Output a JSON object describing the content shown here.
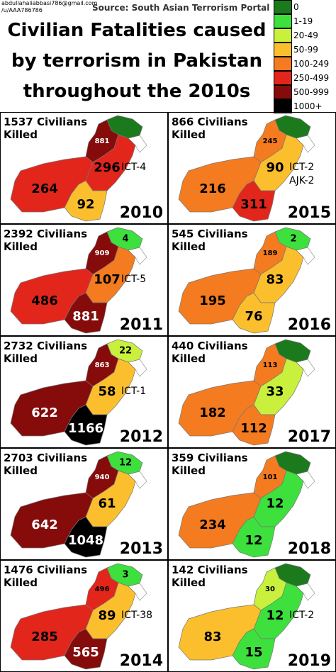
{
  "header": {
    "credit": [
      "abdullahaliabbasi786@gmail.com",
      "/u/AAA786786"
    ],
    "source": "Source: South Asian Terrorism Portal",
    "title": "Civilian Fatalities caused by terrorism in Pakistan throughout the 2010s"
  },
  "legend": [
    {
      "label": "0",
      "color": "#1b7a1b"
    },
    {
      "label": "1-19",
      "color": "#3de03d"
    },
    {
      "label": "20-49",
      "color": "#c8f03c"
    },
    {
      "label": "50-99",
      "color": "#fbbf2d"
    },
    {
      "label": "100-249",
      "color": "#f47b20"
    },
    {
      "label": "250-499",
      "color": "#e2261c"
    },
    {
      "label": "500-999",
      "color": "#860b0b"
    },
    {
      "label": "1000+",
      "color": "#000000"
    }
  ],
  "panels": [
    {
      "caption": "1537 Civilians Killed",
      "year": "2010",
      "notes": [
        "ICT-4"
      ],
      "regions": [
        {
          "value": null,
          "color": "#1b7a1b"
        },
        {
          "value": 881,
          "color": "#860b0b"
        },
        {
          "value": 296,
          "color": "#e2261c"
        },
        {
          "value": 264,
          "color": "#e2261c"
        },
        {
          "value": 92,
          "color": "#fbbf2d"
        }
      ]
    },
    {
      "caption": "866 Civilians Killed",
      "year": "2015",
      "notes": [
        "ICT-2",
        "AJK-2"
      ],
      "regions": [
        {
          "value": null,
          "color": "#1b7a1b"
        },
        {
          "value": 245,
          "color": "#f47b20"
        },
        {
          "value": 90,
          "color": "#fbbf2d"
        },
        {
          "value": 216,
          "color": "#f47b20"
        },
        {
          "value": 311,
          "color": "#e2261c"
        }
      ]
    },
    {
      "caption": "2392 Civilians Killed",
      "year": "2011",
      "notes": [
        "ICT-5"
      ],
      "regions": [
        {
          "value": 4,
          "color": "#3de03d"
        },
        {
          "value": 909,
          "color": "#860b0b"
        },
        {
          "value": 107,
          "color": "#f47b20"
        },
        {
          "value": 486,
          "color": "#e2261c"
        },
        {
          "value": 881,
          "color": "#860b0b"
        }
      ]
    },
    {
      "caption": "545 Civilians Killed",
      "year": "2016",
      "notes": [],
      "regions": [
        {
          "value": 2,
          "color": "#3de03d"
        },
        {
          "value": 189,
          "color": "#f47b20"
        },
        {
          "value": 83,
          "color": "#fbbf2d"
        },
        {
          "value": 195,
          "color": "#f47b20"
        },
        {
          "value": 76,
          "color": "#fbbf2d"
        }
      ]
    },
    {
      "caption": "2732 Civilians Killed",
      "year": "2012",
      "notes": [
        "ICT-1"
      ],
      "regions": [
        {
          "value": 22,
          "color": "#c8f03c"
        },
        {
          "value": 863,
          "color": "#860b0b"
        },
        {
          "value": 58,
          "color": "#fbbf2d"
        },
        {
          "value": 622,
          "color": "#860b0b"
        },
        {
          "value": 1166,
          "color": "#000000"
        }
      ]
    },
    {
      "caption": "440 Civilians Killed",
      "year": "2017",
      "notes": [],
      "regions": [
        {
          "value": null,
          "color": "#1b7a1b"
        },
        {
          "value": 113,
          "color": "#f47b20"
        },
        {
          "value": 33,
          "color": "#c8f03c"
        },
        {
          "value": 182,
          "color": "#f47b20"
        },
        {
          "value": 112,
          "color": "#f47b20"
        }
      ]
    },
    {
      "caption": "2703 Civilians Killed",
      "year": "2013",
      "notes": [],
      "regions": [
        {
          "value": 12,
          "color": "#3de03d"
        },
        {
          "value": 940,
          "color": "#860b0b"
        },
        {
          "value": 61,
          "color": "#fbbf2d"
        },
        {
          "value": 642,
          "color": "#860b0b"
        },
        {
          "value": 1048,
          "color": "#000000"
        }
      ]
    },
    {
      "caption": "359 Civilians Killed",
      "year": "2018",
      "notes": [],
      "regions": [
        {
          "value": null,
          "color": "#1b7a1b"
        },
        {
          "value": 101,
          "color": "#f47b20"
        },
        {
          "value": 12,
          "color": "#3de03d"
        },
        {
          "value": 234,
          "color": "#f47b20"
        },
        {
          "value": 12,
          "color": "#3de03d"
        }
      ]
    },
    {
      "caption": "1476 Civilians Killed",
      "year": "2014",
      "notes": [
        "ICT-38"
      ],
      "regions": [
        {
          "value": 3,
          "color": "#3de03d"
        },
        {
          "value": 496,
          "color": "#e2261c"
        },
        {
          "value": 89,
          "color": "#fbbf2d"
        },
        {
          "value": 285,
          "color": "#e2261c"
        },
        {
          "value": 565,
          "color": "#860b0b"
        }
      ]
    },
    {
      "caption": "142 Civilians Killed",
      "year": "2019",
      "notes": [
        "ICT-2"
      ],
      "regions": [
        {
          "value": null,
          "color": "#1b7a1b"
        },
        {
          "value": 30,
          "color": "#c8f03c"
        },
        {
          "value": 12,
          "color": "#3de03d"
        },
        {
          "value": 83,
          "color": "#fbbf2d"
        },
        {
          "value": 15,
          "color": "#3de03d"
        }
      ]
    }
  ]
}
